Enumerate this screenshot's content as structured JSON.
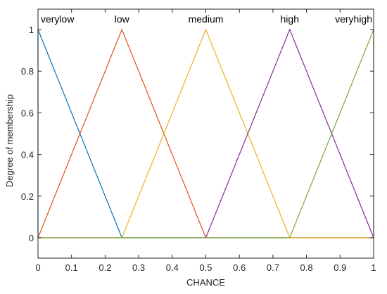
{
  "chart_data": {
    "type": "line",
    "xlabel": "CHANCE",
    "ylabel": "Degree of membership",
    "xlim": [
      0,
      1
    ],
    "ylim": [
      0,
      1
    ],
    "x_ticks": [
      0,
      0.1,
      0.2,
      0.3,
      0.4,
      0.5,
      0.6,
      0.7,
      0.8,
      0.9,
      1
    ],
    "x_tick_labels": [
      "0",
      "0.1",
      "0.2",
      "0.3",
      "0.4",
      "0.5",
      "0.6",
      "0.7",
      "0.8",
      "0.9",
      "1"
    ],
    "y_ticks": [
      0,
      0.2,
      0.4,
      0.6,
      0.8,
      1
    ],
    "y_tick_labels": [
      "0",
      "0.2",
      "0.4",
      "0.6",
      "0.8",
      "1"
    ],
    "grid": false,
    "series": [
      {
        "name": "verylow",
        "color": "#0072BD",
        "x": [
          0,
          0,
          0.25,
          1
        ],
        "y": [
          0,
          1,
          0,
          0
        ]
      },
      {
        "name": "low",
        "color": "#D95319",
        "x": [
          0,
          0.25,
          0.5,
          1
        ],
        "y": [
          0,
          1,
          0,
          0
        ]
      },
      {
        "name": "medium",
        "color": "#EDB120",
        "x": [
          0,
          0.25,
          0.5,
          0.75,
          1
        ],
        "y": [
          0,
          0,
          1,
          0,
          0
        ]
      },
      {
        "name": "high",
        "color": "#7E2F8E",
        "x": [
          0,
          0.5,
          0.75,
          1
        ],
        "y": [
          0,
          0,
          1,
          0
        ]
      },
      {
        "name": "veryhigh",
        "color": "#77AC30",
        "x": [
          0,
          0.75,
          1,
          1
        ],
        "y": [
          0,
          0,
          1,
          0
        ]
      }
    ]
  }
}
